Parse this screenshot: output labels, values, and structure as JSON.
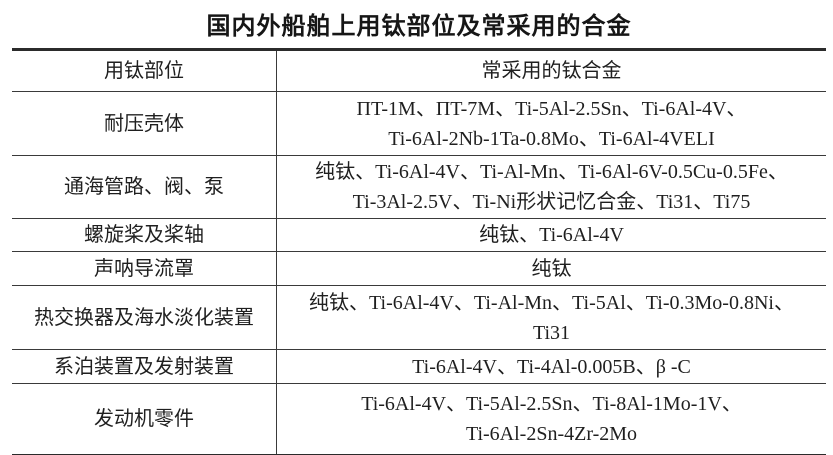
{
  "title": "国内外船舶上用钛部位及常采用的合金",
  "colors": {
    "background": "#ffffff",
    "text": "#1f1f1f",
    "border_heavy": "#2b2b2b",
    "border_light": "#3a3a3a"
  },
  "table": {
    "headers": {
      "part": "用钛部位",
      "alloys": "常采用的钛合金"
    },
    "rows": [
      {
        "part": "耐压壳体",
        "alloys": [
          "ΠT-1M、ΠT-7M、Ti-5Al-2.5Sn、Ti-6Al-4V、",
          "Ti-6Al-2Nb-1Ta-0.8Mo、Ti-6Al-4VELI"
        ]
      },
      {
        "part": "通海管路、阀、泵",
        "alloys": [
          "纯钛、Ti-6Al-4V、Ti-Al-Mn、Ti-6Al-6V-0.5Cu-0.5Fe、",
          "Ti-3Al-2.5V、Ti-Ni形状记忆合金、Ti31、Ti75"
        ]
      },
      {
        "part": "螺旋桨及桨轴",
        "alloys": [
          "纯钛、Ti-6Al-4V"
        ]
      },
      {
        "part": "声呐导流罩",
        "alloys": [
          "纯钛"
        ]
      },
      {
        "part": "热交换器及海水淡化装置",
        "alloys": [
          "纯钛、Ti-6Al-4V、Ti-Al-Mn、Ti-5Al、Ti-0.3Mo-0.8Ni、",
          "Ti31"
        ]
      },
      {
        "part": "系泊装置及发射装置",
        "alloys": [
          "Ti-6Al-4V、Ti-4Al-0.005B、β -C"
        ]
      },
      {
        "part": "发动机零件",
        "alloys": [
          "Ti-6Al-4V、Ti-5Al-2.5Sn、Ti-8Al-1Mo-1V、",
          "Ti-6Al-2Sn-4Zr-2Mo"
        ]
      }
    ]
  }
}
